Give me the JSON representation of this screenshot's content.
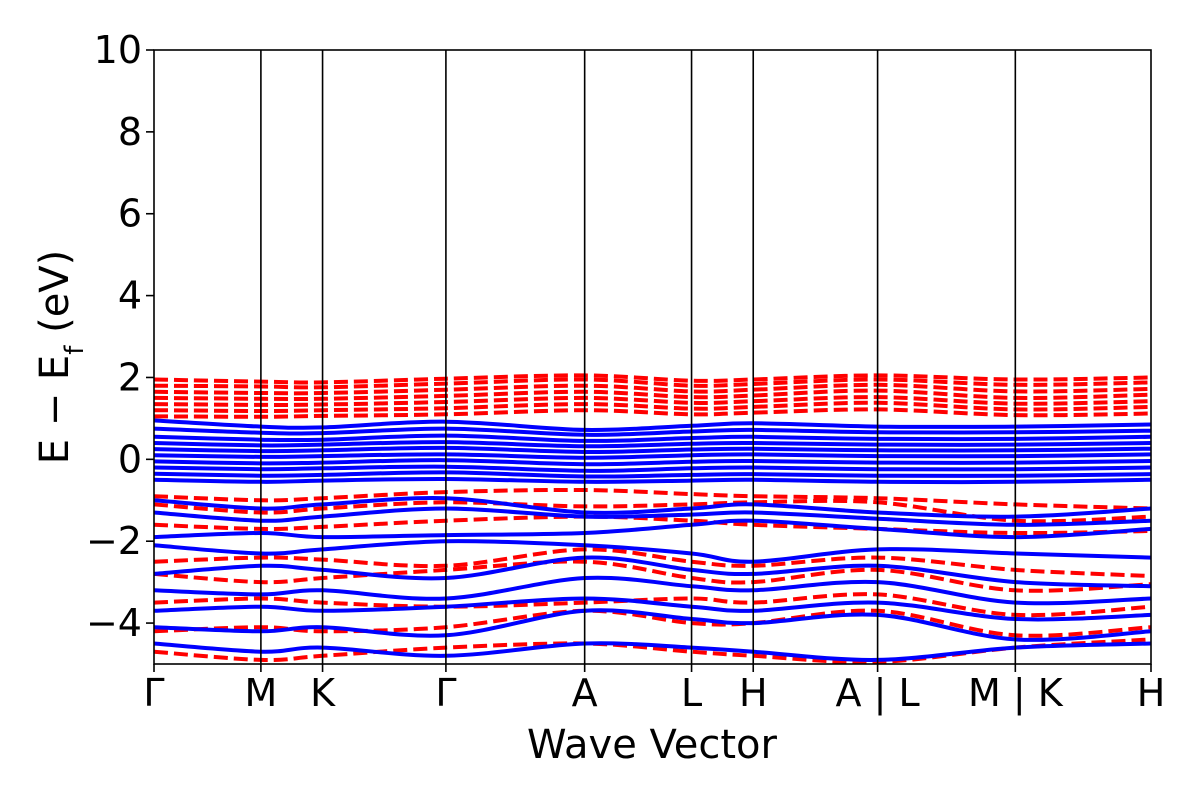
{
  "chart_data": {
    "type": "line",
    "title": "",
    "xlabel": "Wave Vector",
    "ylabel": "E − E_f (eV)",
    "ylabel_parts": {
      "main": "E  −  E",
      "sub": "f",
      "tail": " (eV)"
    },
    "ylim": [
      -5,
      10
    ],
    "yticks": [
      10,
      8,
      6,
      4,
      2,
      0,
      -2,
      -4
    ],
    "ytick_labels": [
      "10",
      "8",
      "6",
      "4",
      "2",
      "0",
      "−2",
      "−4"
    ],
    "xlim": [
      0,
      9.7
    ],
    "kpoints": [
      {
        "label": "Γ",
        "x": 0.0
      },
      {
        "label": "M",
        "x": 1.04
      },
      {
        "label": "K",
        "x": 1.64
      },
      {
        "label": "Γ",
        "x": 2.84
      },
      {
        "label": "A",
        "x": 4.19
      },
      {
        "label": "L",
        "x": 5.23
      },
      {
        "label": "H",
        "x": 5.83
      },
      {
        "label": "A | L",
        "x": 7.04
      },
      {
        "label": "M | K",
        "x": 8.38
      },
      {
        "label": "H",
        "x": 9.7
      }
    ],
    "grid": false,
    "legend": "none",
    "series": [
      {
        "style": "dashed",
        "color": "#ff0000",
        "bands": [
          [
            1.95,
            1.9,
            1.88,
            1.97,
            2.05,
            1.92,
            1.95,
            2.05,
            1.95,
            2.0
          ],
          [
            1.8,
            1.78,
            1.76,
            1.85,
            1.95,
            1.8,
            1.84,
            1.95,
            1.82,
            1.88
          ],
          [
            1.65,
            1.62,
            1.62,
            1.7,
            1.8,
            1.66,
            1.7,
            1.82,
            1.66,
            1.72
          ],
          [
            1.5,
            1.48,
            1.48,
            1.55,
            1.65,
            1.52,
            1.56,
            1.68,
            1.5,
            1.58
          ],
          [
            1.35,
            1.33,
            1.34,
            1.4,
            1.5,
            1.38,
            1.42,
            1.52,
            1.36,
            1.42
          ],
          [
            1.2,
            1.18,
            1.2,
            1.25,
            1.35,
            1.24,
            1.28,
            1.38,
            1.22,
            1.28
          ],
          [
            1.05,
            1.04,
            1.06,
            1.1,
            1.2,
            1.1,
            1.14,
            1.22,
            1.08,
            1.12
          ],
          [
            -0.9,
            -1.0,
            -0.95,
            -0.8,
            -0.75,
            -0.85,
            -0.9,
            -0.95,
            -1.1,
            -1.2
          ],
          [
            -1.1,
            -1.3,
            -1.2,
            -1.05,
            -1.15,
            -1.1,
            -1.05,
            -1.05,
            -1.5,
            -1.4
          ],
          [
            -1.6,
            -1.7,
            -1.65,
            -1.5,
            -1.4,
            -1.5,
            -1.6,
            -1.7,
            -1.8,
            -1.75
          ],
          [
            -2.5,
            -2.4,
            -2.45,
            -2.6,
            -2.2,
            -2.5,
            -2.6,
            -2.4,
            -2.7,
            -2.85
          ],
          [
            -2.8,
            -3.0,
            -2.9,
            -2.7,
            -2.5,
            -2.9,
            -3.0,
            -2.7,
            -3.2,
            -3.05
          ],
          [
            -3.5,
            -3.4,
            -3.5,
            -3.6,
            -3.5,
            -3.4,
            -3.5,
            -3.3,
            -3.8,
            -3.6
          ],
          [
            -4.2,
            -4.1,
            -4.2,
            -4.1,
            -3.7,
            -4.0,
            -4.0,
            -3.7,
            -4.3,
            -4.1
          ],
          [
            -4.7,
            -4.9,
            -4.8,
            -4.6,
            -4.5,
            -4.7,
            -4.8,
            -4.95,
            -4.6,
            -4.4
          ]
        ]
      },
      {
        "style": "solid",
        "color": "#0000ff",
        "bands": [
          [
            0.95,
            0.8,
            0.78,
            0.92,
            0.72,
            0.82,
            0.88,
            0.8,
            0.8,
            0.85
          ],
          [
            0.75,
            0.65,
            0.64,
            0.75,
            0.6,
            0.68,
            0.72,
            0.66,
            0.66,
            0.7
          ],
          [
            0.55,
            0.48,
            0.48,
            0.58,
            0.45,
            0.52,
            0.55,
            0.5,
            0.5,
            0.55
          ],
          [
            0.4,
            0.34,
            0.36,
            0.42,
            0.32,
            0.38,
            0.4,
            0.36,
            0.36,
            0.4
          ],
          [
            0.25,
            0.2,
            0.22,
            0.28,
            0.18,
            0.24,
            0.26,
            0.22,
            0.22,
            0.26
          ],
          [
            0.1,
            0.06,
            0.08,
            0.12,
            0.04,
            0.1,
            0.12,
            0.08,
            0.08,
            0.12
          ],
          [
            -0.05,
            -0.1,
            -0.08,
            -0.02,
            -0.12,
            -0.06,
            -0.04,
            -0.08,
            -0.08,
            -0.04
          ],
          [
            -0.2,
            -0.24,
            -0.22,
            -0.18,
            -0.28,
            -0.22,
            -0.2,
            -0.24,
            -0.24,
            -0.2
          ],
          [
            -0.35,
            -0.4,
            -0.38,
            -0.32,
            -0.42,
            -0.38,
            -0.36,
            -0.4,
            -0.4,
            -0.36
          ],
          [
            -0.5,
            -0.55,
            -0.52,
            -0.48,
            -0.55,
            -0.52,
            -0.5,
            -0.55,
            -0.55,
            -0.5
          ],
          [
            -1.0,
            -1.2,
            -1.1,
            -0.95,
            -1.3,
            -1.2,
            -1.1,
            -1.3,
            -1.4,
            -1.2
          ],
          [
            -1.3,
            -1.5,
            -1.4,
            -1.2,
            -1.4,
            -1.35,
            -1.3,
            -1.45,
            -1.6,
            -1.5
          ],
          [
            -1.9,
            -1.8,
            -1.9,
            -1.85,
            -1.8,
            -1.6,
            -1.5,
            -1.7,
            -1.9,
            -1.7
          ],
          [
            -2.1,
            -2.3,
            -2.2,
            -2.0,
            -2.1,
            -2.3,
            -2.5,
            -2.2,
            -2.3,
            -2.4
          ],
          [
            -2.8,
            -2.6,
            -2.7,
            -2.9,
            -2.4,
            -2.7,
            -2.8,
            -2.6,
            -3.0,
            -3.1
          ],
          [
            -3.2,
            -3.3,
            -3.2,
            -3.4,
            -2.9,
            -3.1,
            -3.2,
            -3.0,
            -3.5,
            -3.4
          ],
          [
            -3.7,
            -3.6,
            -3.7,
            -3.6,
            -3.4,
            -3.6,
            -3.7,
            -3.5,
            -3.9,
            -3.8
          ],
          [
            -4.1,
            -4.2,
            -4.1,
            -4.3,
            -3.7,
            -3.9,
            -4.0,
            -3.8,
            -4.4,
            -4.2
          ],
          [
            -4.5,
            -4.7,
            -4.6,
            -4.8,
            -4.5,
            -4.6,
            -4.7,
            -4.9,
            -4.6,
            -4.5
          ]
        ]
      }
    ]
  }
}
